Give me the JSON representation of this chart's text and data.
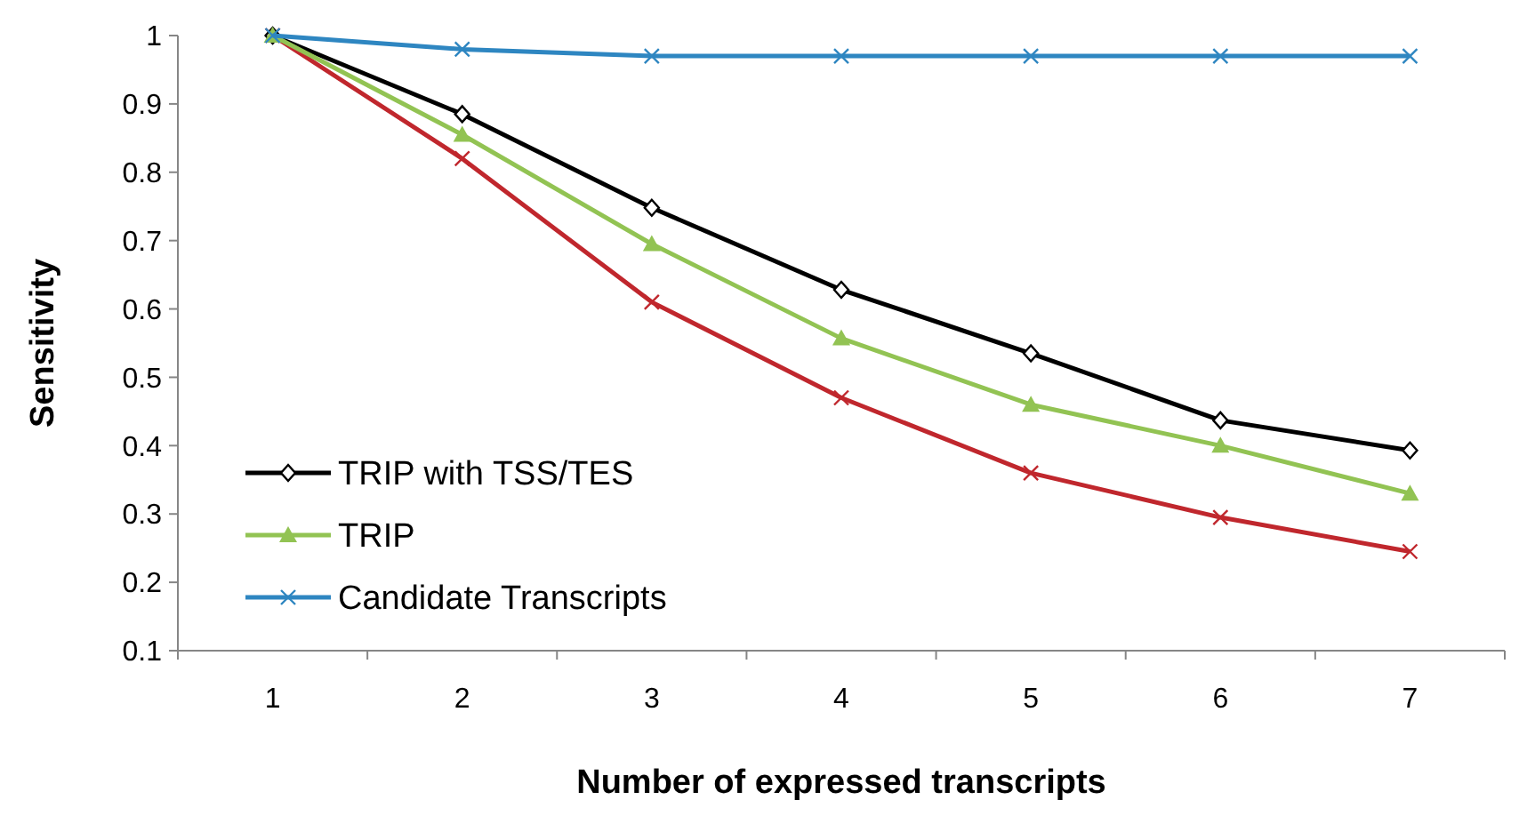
{
  "chart_data": {
    "type": "line",
    "xlabel": "Number of expressed transcripts",
    "ylabel": "Sensitivity",
    "categories": [
      "1",
      "2",
      "3",
      "4",
      "5",
      "6",
      "7"
    ],
    "series": [
      {
        "color": "#c0272d",
        "marker": "cross",
        "values": [
          1,
          0.82,
          0.61,
          0.47,
          0.36,
          0.295,
          0.245
        ]
      },
      {
        "name": "TRIP with TSS/TES",
        "color": "#000000",
        "marker": "diamond",
        "values": [
          1,
          0.885,
          0.748,
          0.628,
          0.535,
          0.437,
          0.393
        ]
      },
      {
        "name": "TRIP",
        "color": "#92c353",
        "marker": "triangle",
        "values": [
          1,
          0.855,
          0.695,
          0.557,
          0.46,
          0.4,
          0.33
        ]
      },
      {
        "name": "Candidate Transcripts",
        "color": "#2e86c1",
        "marker": "cross",
        "values": [
          1,
          0.98,
          0.97,
          0.97,
          0.97,
          0.97,
          0.97
        ]
      }
    ],
    "ylim": [
      0.1,
      1
    ],
    "yticks": [
      {
        "value": 0.1,
        "label": "0.1"
      },
      {
        "value": 0.2,
        "label": "0.2"
      },
      {
        "value": 0.3,
        "label": "0.3"
      },
      {
        "value": 0.4,
        "label": "0.4"
      },
      {
        "value": 0.5,
        "label": "0.5"
      },
      {
        "value": 0.6,
        "label": "0.6"
      },
      {
        "value": 0.7,
        "label": "0.7"
      },
      {
        "value": 0.8,
        "label": "0.8"
      },
      {
        "value": 0.9,
        "label": "0.9"
      },
      {
        "value": 1,
        "label": "1"
      }
    ],
    "grid": false,
    "legend": "bottom left",
    "line_style": "solid"
  }
}
